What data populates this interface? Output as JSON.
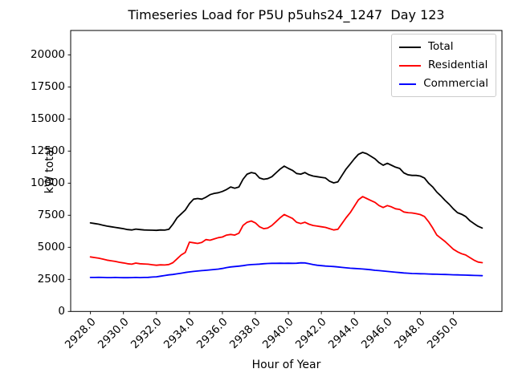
{
  "figure": {
    "background_color": "#ffffff",
    "axes_color": "#000000",
    "legend_border_color": "#cccccc"
  },
  "chart_data": {
    "type": "line",
    "title": "Timeseries Load for P5U p5uhs24_1247  Day 123",
    "xlabel": "Hour of Year",
    "ylabel": "kW total",
    "grid": false,
    "legend_position": "upper right",
    "xlim": [
      2926.8,
      2952.95
    ],
    "ylim": [
      0,
      21900
    ],
    "x_ticks": [
      2928.0,
      2930.0,
      2932.0,
      2934.0,
      2936.0,
      2938.0,
      2940.0,
      2942.0,
      2944.0,
      2946.0,
      2948.0,
      2950.0
    ],
    "x_tick_labels": [
      "2928.0",
      "2930.0",
      "2932.0",
      "2934.0",
      "2936.0",
      "2938.0",
      "2940.0",
      "2942.0",
      "2944.0",
      "2946.0",
      "2948.0",
      "2950.0"
    ],
    "y_ticks": [
      0,
      2500,
      5000,
      7500,
      10000,
      12500,
      15000,
      17500,
      20000
    ],
    "y_tick_labels": [
      "0",
      "2500",
      "5000",
      "7500",
      "10000",
      "12500",
      "15000",
      "17500",
      "20000"
    ],
    "x": [
      2928.0,
      2928.25,
      2928.5,
      2928.75,
      2929.0,
      2929.25,
      2929.5,
      2929.75,
      2930.0,
      2930.25,
      2930.5,
      2930.75,
      2931.0,
      2931.25,
      2931.5,
      2931.75,
      2932.0,
      2932.25,
      2932.5,
      2932.75,
      2933.0,
      2933.25,
      2933.5,
      2933.75,
      2934.0,
      2934.25,
      2934.5,
      2934.75,
      2935.0,
      2935.25,
      2935.5,
      2935.75,
      2936.0,
      2936.25,
      2936.5,
      2936.75,
      2937.0,
      2937.25,
      2937.5,
      2937.75,
      2938.0,
      2938.25,
      2938.5,
      2938.75,
      2939.0,
      2939.25,
      2939.5,
      2939.75,
      2940.0,
      2940.25,
      2940.5,
      2940.75,
      2941.0,
      2941.25,
      2941.5,
      2941.75,
      2942.0,
      2942.25,
      2942.5,
      2942.75,
      2943.0,
      2943.25,
      2943.5,
      2943.75,
      2944.0,
      2944.25,
      2944.5,
      2944.75,
      2945.0,
      2945.25,
      2945.5,
      2945.75,
      2946.0,
      2946.25,
      2946.5,
      2946.75,
      2947.0,
      2947.25,
      2947.5,
      2947.75,
      2948.0,
      2948.25,
      2948.5,
      2948.75,
      2949.0,
      2949.25,
      2949.5,
      2949.75,
      2950.0,
      2950.25,
      2950.5,
      2950.75,
      2951.0,
      2951.25,
      2951.5,
      2951.75
    ],
    "series": [
      {
        "name": "Total",
        "color": "#000000",
        "values": [
          6900,
          6850,
          6800,
          6720,
          6650,
          6600,
          6550,
          6500,
          6450,
          6380,
          6350,
          6420,
          6380,
          6350,
          6340,
          6330,
          6320,
          6350,
          6340,
          6400,
          6800,
          7300,
          7600,
          7900,
          8400,
          8750,
          8800,
          8750,
          8900,
          9100,
          9200,
          9250,
          9350,
          9500,
          9700,
          9600,
          9700,
          10300,
          10700,
          10830,
          10750,
          10400,
          10300,
          10350,
          10500,
          10800,
          11100,
          11330,
          11150,
          11000,
          10750,
          10700,
          10830,
          10650,
          10550,
          10500,
          10450,
          10400,
          10150,
          10020,
          10100,
          10600,
          11100,
          11500,
          11900,
          12250,
          12400,
          12300,
          12100,
          11900,
          11600,
          11400,
          11550,
          11400,
          11250,
          11150,
          10800,
          10650,
          10600,
          10600,
          10550,
          10400,
          10000,
          9700,
          9300,
          9000,
          8650,
          8350,
          8000,
          7700,
          7580,
          7400,
          7080,
          6850,
          6640,
          6500
        ]
      },
      {
        "name": "Residential",
        "color": "#ff0000",
        "values": [
          4250,
          4200,
          4150,
          4080,
          4000,
          3950,
          3900,
          3830,
          3780,
          3720,
          3680,
          3770,
          3720,
          3700,
          3680,
          3640,
          3600,
          3630,
          3620,
          3660,
          3800,
          4100,
          4400,
          4600,
          5400,
          5350,
          5300,
          5380,
          5600,
          5550,
          5650,
          5750,
          5800,
          5950,
          6000,
          5950,
          6100,
          6700,
          6950,
          7050,
          6900,
          6600,
          6450,
          6500,
          6700,
          7000,
          7300,
          7550,
          7400,
          7250,
          6950,
          6850,
          6950,
          6800,
          6700,
          6650,
          6600,
          6550,
          6450,
          6350,
          6400,
          6850,
          7300,
          7700,
          8200,
          8700,
          8950,
          8800,
          8650,
          8500,
          8250,
          8100,
          8250,
          8150,
          8000,
          7950,
          7750,
          7700,
          7680,
          7620,
          7550,
          7400,
          7000,
          6500,
          5950,
          5700,
          5450,
          5150,
          4850,
          4650,
          4500,
          4400,
          4200,
          4000,
          3850,
          3800
        ]
      },
      {
        "name": "Commercial",
        "color": "#0000ff",
        "values": [
          2650,
          2650,
          2660,
          2650,
          2640,
          2640,
          2650,
          2640,
          2630,
          2630,
          2640,
          2650,
          2640,
          2650,
          2660,
          2680,
          2700,
          2750,
          2800,
          2850,
          2880,
          2930,
          2980,
          3040,
          3080,
          3120,
          3150,
          3180,
          3210,
          3240,
          3270,
          3300,
          3350,
          3420,
          3470,
          3500,
          3530,
          3570,
          3620,
          3650,
          3670,
          3690,
          3720,
          3740,
          3750,
          3750,
          3760,
          3750,
          3760,
          3750,
          3760,
          3790,
          3780,
          3720,
          3650,
          3600,
          3570,
          3540,
          3520,
          3500,
          3470,
          3430,
          3400,
          3370,
          3350,
          3330,
          3310,
          3280,
          3250,
          3210,
          3180,
          3150,
          3120,
          3090,
          3060,
          3030,
          3000,
          2980,
          2960,
          2950,
          2940,
          2930,
          2920,
          2910,
          2900,
          2890,
          2880,
          2870,
          2860,
          2850,
          2840,
          2830,
          2820,
          2810,
          2800,
          2790
        ]
      }
    ]
  }
}
